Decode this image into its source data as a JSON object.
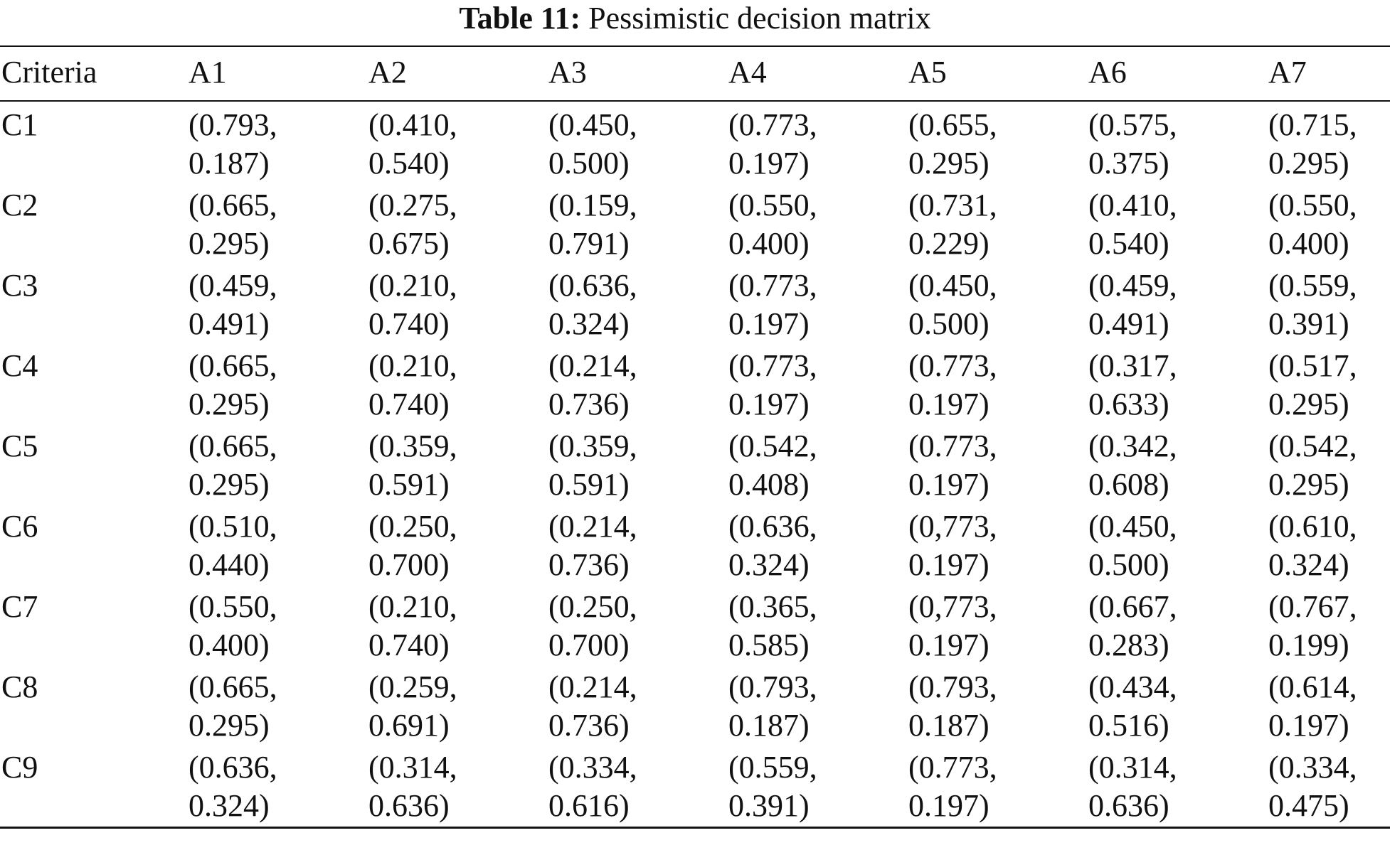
{
  "caption": {
    "label": "Table 11:",
    "text": "Pessimistic decision matrix"
  },
  "table": {
    "headers": [
      "Criteria",
      "A1",
      "A2",
      "A3",
      "A4",
      "A5",
      "A6",
      "A7"
    ],
    "rows": [
      {
        "criteria": "C1",
        "cells": [
          [
            "(0.793,",
            "0.187)"
          ],
          [
            "(0.410,",
            "0.540)"
          ],
          [
            "(0.450,",
            "0.500)"
          ],
          [
            "(0.773,",
            "0.197)"
          ],
          [
            "(0.655,",
            "0.295)"
          ],
          [
            "(0.575,",
            "0.375)"
          ],
          [
            "(0.715,",
            "0.295)"
          ]
        ]
      },
      {
        "criteria": "C2",
        "cells": [
          [
            "(0.665,",
            "0.295)"
          ],
          [
            "(0.275,",
            "0.675)"
          ],
          [
            "(0.159,",
            "0.791)"
          ],
          [
            "(0.550,",
            "0.400)"
          ],
          [
            "(0.731,",
            "0.229)"
          ],
          [
            "(0.410,",
            "0.540)"
          ],
          [
            "(0.550,",
            "0.400)"
          ]
        ]
      },
      {
        "criteria": "C3",
        "cells": [
          [
            "(0.459,",
            "0.491)"
          ],
          [
            "(0.210,",
            "0.740)"
          ],
          [
            "(0.636,",
            "0.324)"
          ],
          [
            "(0.773,",
            "0.197)"
          ],
          [
            "(0.450,",
            "0.500)"
          ],
          [
            "(0.459,",
            "0.491)"
          ],
          [
            "(0.559,",
            "0.391)"
          ]
        ]
      },
      {
        "criteria": "C4",
        "cells": [
          [
            "(0.665,",
            "0.295)"
          ],
          [
            "(0.210,",
            "0.740)"
          ],
          [
            "(0.214,",
            "0.736)"
          ],
          [
            "(0.773,",
            "0.197)"
          ],
          [
            "(0.773,",
            "0.197)"
          ],
          [
            "(0.317,",
            "0.633)"
          ],
          [
            "(0.517,",
            "0.295)"
          ]
        ]
      },
      {
        "criteria": "C5",
        "cells": [
          [
            "(0.665,",
            "0.295)"
          ],
          [
            "(0.359,",
            "0.591)"
          ],
          [
            "(0.359,",
            "0.591)"
          ],
          [
            "(0.542,",
            "0.408)"
          ],
          [
            "(0.773,",
            "0.197)"
          ],
          [
            "(0.342,",
            "0.608)"
          ],
          [
            "(0.542,",
            "0.295)"
          ]
        ]
      },
      {
        "criteria": "C6",
        "cells": [
          [
            "(0.510,",
            "0.440)"
          ],
          [
            "(0.250,",
            "0.700)"
          ],
          [
            "(0.214,",
            "0.736)"
          ],
          [
            "(0.636,",
            "0.324)"
          ],
          [
            "(0,773,",
            "0.197)"
          ],
          [
            "(0.450,",
            "0.500)"
          ],
          [
            "(0.610,",
            "0.324)"
          ]
        ]
      },
      {
        "criteria": "C7",
        "cells": [
          [
            "(0.550,",
            "0.400)"
          ],
          [
            "(0.210,",
            "0.740)"
          ],
          [
            "(0.250,",
            "0.700)"
          ],
          [
            "(0.365,",
            "0.585)"
          ],
          [
            "(0,773,",
            "0.197)"
          ],
          [
            "(0.667,",
            "0.283)"
          ],
          [
            "(0.767,",
            "0.199)"
          ]
        ]
      },
      {
        "criteria": "C8",
        "cells": [
          [
            "(0.665,",
            "0.295)"
          ],
          [
            "(0.259,",
            "0.691)"
          ],
          [
            "(0.214,",
            "0.736)"
          ],
          [
            "(0.793,",
            "0.187)"
          ],
          [
            "(0.793,",
            "0.187)"
          ],
          [
            "(0.434,",
            "0.516)"
          ],
          [
            "(0.614,",
            "0.197)"
          ]
        ]
      },
      {
        "criteria": "C9",
        "cells": [
          [
            "(0.636,",
            "0.324)"
          ],
          [
            "(0.314,",
            "0.636)"
          ],
          [
            "(0.334,",
            "0.616)"
          ],
          [
            "(0.559,",
            "0.391)"
          ],
          [
            "(0.773,",
            "0.197)"
          ],
          [
            "(0.314,",
            "0.636)"
          ],
          [
            "(0.334,",
            "0.475)"
          ]
        ]
      }
    ]
  }
}
